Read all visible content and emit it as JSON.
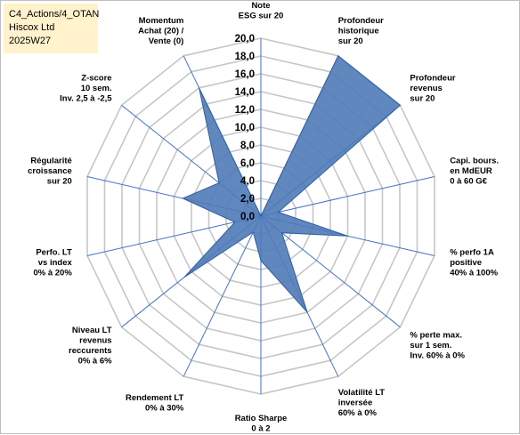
{
  "info": {
    "line1": "C4_Actions/4_OTAN",
    "line2": "Hiscox Ltd",
    "line3": "2025W27"
  },
  "colors": {
    "fill": "#4f7ab7",
    "stroke": "#2f5fa0",
    "grid": "#c6c6c6",
    "spoke": "#4472c4",
    "info_background": "#fff2cc"
  },
  "chart_data": {
    "type": "radar",
    "title": "",
    "rmin": 0,
    "rmax": 20,
    "tick_values": [
      0,
      2,
      4,
      6,
      8,
      10,
      12,
      14,
      16,
      18,
      20
    ],
    "tick_labels": [
      "0,0",
      "2,0",
      "4,0",
      "6,0",
      "8,0",
      "10,0",
      "12,0",
      "14,0",
      "16,0",
      "18,0",
      "20,0"
    ],
    "grid": true,
    "axes": [
      {
        "label": [
          "Note",
          "ESG sur 20"
        ],
        "value": 0
      },
      {
        "label": [
          "Profondeur",
          "historique",
          "sur 20"
        ],
        "value": 20
      },
      {
        "label": [
          "Profondeur",
          "revenus",
          "sur 20"
        ],
        "value": 20
      },
      {
        "label": [
          "Capi. bours.",
          "en MdEUR",
          "0 à 60 G€"
        ],
        "value": 2
      },
      {
        "label": [
          "% perfo 1A",
          "positive",
          "40% à 100%"
        ],
        "value": 10
      },
      {
        "label": [
          "% perte max.",
          "sur 1 sem.",
          "Inv. 60% à 0%"
        ],
        "value": 3
      },
      {
        "label": [
          "Volatilité LT",
          "inversée",
          "60% à 0%"
        ],
        "value": 12
      },
      {
        "label": [
          "Ratio Sharpe",
          "0 à 2"
        ],
        "value": 5
      },
      {
        "label": [
          "Rendement LT",
          "0% à 30%"
        ],
        "value": 2
      },
      {
        "label": [
          "Niveau LT",
          "revenus",
          "reccurents",
          "0% à 6%"
        ],
        "value": 11
      },
      {
        "label": [
          "Perfo. LT",
          "vs index",
          "0% à 20%"
        ],
        "value": 3
      },
      {
        "label": [
          "Régularité",
          "croissance",
          "sur 20"
        ],
        "value": 9
      },
      {
        "label": [
          "Z-score",
          "10 sem.",
          "Inv. 2,5 à -2,5"
        ],
        "value": 6
      },
      {
        "label": [
          "Momentum",
          "Achat (20) /",
          "Vente (0)"
        ],
        "value": 16
      }
    ]
  }
}
